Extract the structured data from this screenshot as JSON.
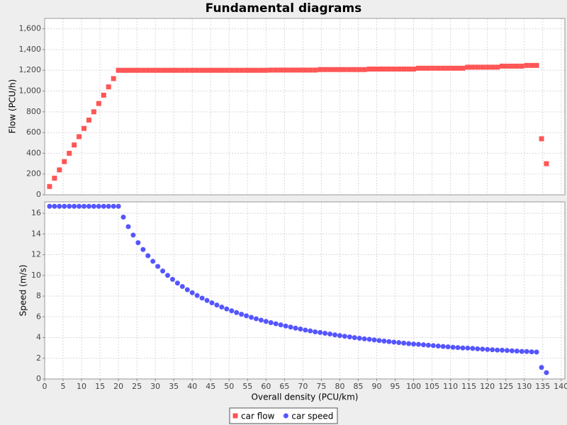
{
  "chart_data": [
    {
      "type": "scatter",
      "title": "Fundamental diagrams",
      "ylabel": "Flow (PCU/h)",
      "ylim": [
        0,
        1700
      ],
      "yticks": [
        0,
        200,
        400,
        600,
        800,
        {
          "value": 1000,
          "label": "1,000"
        },
        {
          "value": 1200,
          "label": "1,200"
        },
        {
          "value": 1400,
          "label": "1,400"
        },
        {
          "value": 1600,
          "label": "1,600"
        }
      ],
      "grid": true,
      "series": [
        {
          "name": "car flow",
          "color": "#ff5555",
          "marker": "square",
          "values": [
            80,
            160,
            240,
            320,
            400,
            480,
            560,
            640,
            720,
            800,
            880,
            960,
            1040,
            1120,
            1200,
            1200,
            1200,
            1200,
            1200,
            1200,
            1200,
            1200,
            1200,
            1200,
            1200,
            1200,
            1200,
            1200,
            1200,
            1200,
            1200,
            1200,
            1200,
            1200,
            1200,
            1200,
            1200,
            1200,
            1200,
            1200,
            1200,
            1200,
            1200,
            1200,
            1200,
            1202,
            1202,
            1202,
            1202,
            1202,
            1202,
            1202,
            1202,
            1202,
            1202,
            1207,
            1207,
            1207,
            1207,
            1207,
            1207,
            1207,
            1207,
            1207,
            1207,
            1212,
            1212,
            1212,
            1212,
            1212,
            1212,
            1212,
            1212,
            1212,
            1212,
            1220,
            1220,
            1220,
            1220,
            1220,
            1220,
            1220,
            1220,
            1220,
            1220,
            1230,
            1230,
            1230,
            1230,
            1230,
            1230,
            1230,
            1240,
            1240,
            1240,
            1240,
            1240,
            1247,
            1247,
            1247,
            540,
            300
          ]
        }
      ]
    },
    {
      "type": "scatter",
      "xlabel": "Overall density (PCU/km)",
      "ylabel": "Speed (m/s)",
      "x": [
        1.33,
        2.67,
        4,
        5.33,
        6.67,
        8,
        9.33,
        10.67,
        12,
        13.33,
        14.67,
        16,
        17.33,
        18.67,
        20,
        21.33,
        22.67,
        24,
        25.33,
        26.67,
        28,
        29.33,
        30.67,
        32,
        33.33,
        34.67,
        36,
        37.33,
        38.67,
        40,
        41.33,
        42.67,
        44,
        45.33,
        46.67,
        48,
        49.33,
        50.67,
        52,
        53.33,
        54.67,
        56,
        57.33,
        58.67,
        60,
        61.33,
        62.67,
        64,
        65.33,
        66.67,
        68,
        69.33,
        70.67,
        72,
        73.33,
        74.67,
        76,
        77.33,
        78.67,
        80,
        81.33,
        82.67,
        84,
        85.33,
        86.67,
        88,
        89.33,
        90.67,
        92,
        93.33,
        94.67,
        96,
        97.33,
        98.67,
        100,
        101.33,
        102.67,
        104,
        105.33,
        106.67,
        108,
        109.33,
        110.67,
        112,
        113.33,
        114.67,
        116,
        117.33,
        118.67,
        120,
        121.33,
        122.67,
        124,
        125.33,
        126.67,
        128,
        129.33,
        130.67,
        132,
        133.33,
        134.67,
        136
      ],
      "xlim": [
        0,
        141
      ],
      "xticks": [
        0,
        5,
        10,
        15,
        20,
        25,
        30,
        35,
        40,
        45,
        50,
        55,
        60,
        65,
        70,
        75,
        80,
        85,
        90,
        95,
        100,
        105,
        110,
        115,
        120,
        125,
        130,
        135,
        140
      ],
      "ylim": [
        0,
        17.1
      ],
      "yticks": [
        0,
        2,
        4,
        6,
        8,
        10,
        12,
        14,
        16
      ],
      "grid": true,
      "legend": "bottom",
      "series": [
        {
          "name": "car speed",
          "color": "#5555ff",
          "marker": "circle",
          "values": [
            16.67,
            16.67,
            16.67,
            16.67,
            16.67,
            16.67,
            16.67,
            16.67,
            16.67,
            16.67,
            16.67,
            16.67,
            16.67,
            16.67,
            16.67,
            15.63,
            14.71,
            13.89,
            13.16,
            12.5,
            11.9,
            11.36,
            10.87,
            10.42,
            10,
            9.62,
            9.26,
            8.93,
            8.62,
            8.33,
            8.06,
            7.81,
            7.58,
            7.35,
            7.14,
            6.94,
            6.76,
            6.58,
            6.41,
            6.25,
            6.1,
            5.95,
            5.81,
            5.68,
            5.56,
            5.44,
            5.33,
            5.22,
            5.11,
            5.01,
            4.91,
            4.82,
            4.72,
            4.64,
            4.55,
            4.49,
            4.41,
            4.34,
            4.26,
            4.19,
            4.12,
            4.06,
            3.99,
            3.93,
            3.87,
            3.83,
            3.77,
            3.71,
            3.66,
            3.61,
            3.56,
            3.51,
            3.46,
            3.41,
            3.37,
            3.34,
            3.3,
            3.26,
            3.22,
            3.18,
            3.14,
            3.1,
            3.06,
            3.03,
            2.99,
            2.98,
            2.95,
            2.91,
            2.88,
            2.85,
            2.82,
            2.79,
            2.78,
            2.75,
            2.72,
            2.69,
            2.66,
            2.65,
            2.62,
            2.6,
            1.11,
            0.61
          ]
        }
      ]
    }
  ]
}
